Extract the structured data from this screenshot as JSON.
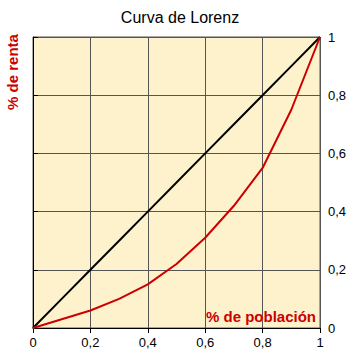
{
  "chart_data": {
    "type": "line",
    "title": "Curva de Lorenz",
    "xlabel": "% de población",
    "ylabel": "% de renta",
    "x": [
      0,
      0.1,
      0.2,
      0.3,
      0.4,
      0.5,
      0.6,
      0.7,
      0.8,
      0.9,
      1
    ],
    "series": [
      {
        "color": "#000000",
        "line_style": "solid",
        "values": [
          0,
          0.1,
          0.2,
          0.3,
          0.4,
          0.5,
          0.6,
          0.7,
          0.8,
          0.9,
          1
        ]
      },
      {
        "color": "#cc0000",
        "line_style": "solid",
        "values": [
          0,
          0.03,
          0.06,
          0.1,
          0.15,
          0.22,
          0.31,
          0.42,
          0.55,
          0.75,
          1
        ]
      }
    ],
    "xlim": [
      0,
      1
    ],
    "ylim": [
      0,
      1
    ],
    "xticks": [
      0,
      {
        "value": 0.2,
        "label": "0,2"
      },
      {
        "value": 0.4,
        "label": "0,4"
      },
      {
        "value": 0.6,
        "label": "0,6"
      },
      {
        "value": 0.8,
        "label": "0,8"
      },
      1
    ],
    "yticks": [
      0,
      {
        "value": 0.2,
        "label": "0,2"
      },
      {
        "value": 0.4,
        "label": "0,4"
      },
      {
        "value": 0.6,
        "label": "0,6"
      },
      {
        "value": 0.8,
        "label": "0,8"
      },
      1
    ],
    "grid": true
  }
}
